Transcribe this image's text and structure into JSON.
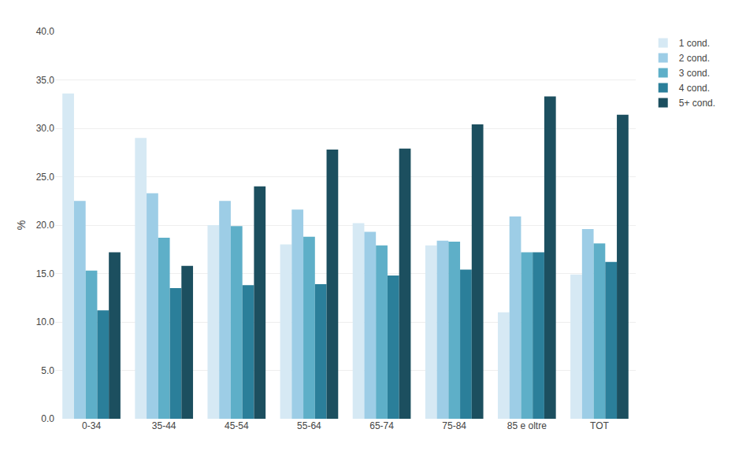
{
  "chart_data": {
    "type": "bar",
    "categories": [
      "0-34",
      "35-44",
      "45-54",
      "55-64",
      "65-74",
      "75-84",
      "85 e oltre",
      "TOT"
    ],
    "series": [
      {
        "name": "1 cond.",
        "color": "#d6e9f4",
        "values": [
          33.6,
          29.0,
          20.0,
          18.0,
          20.2,
          17.9,
          11.0,
          14.9
        ]
      },
      {
        "name": "2 cond.",
        "color": "#9dcde6",
        "values": [
          22.5,
          23.3,
          22.5,
          21.6,
          19.3,
          18.4,
          20.9,
          19.6
        ]
      },
      {
        "name": "3 cond.",
        "color": "#5eafc8",
        "values": [
          15.3,
          18.7,
          19.9,
          18.8,
          17.9,
          18.3,
          17.2,
          18.1
        ]
      },
      {
        "name": "4 cond.",
        "color": "#2b7f9a",
        "values": [
          11.2,
          13.5,
          13.8,
          13.9,
          14.8,
          15.4,
          17.2,
          16.2
        ]
      },
      {
        "name": "5+ cond.",
        "color": "#1c4f5f",
        "values": [
          17.2,
          15.8,
          24.0,
          27.8,
          27.9,
          30.4,
          33.3,
          31.4
        ]
      }
    ],
    "ylabel": "%",
    "ylim": [
      0,
      40
    ],
    "yticks": [
      {
        "value": 0,
        "label": "0.0"
      },
      {
        "value": 5,
        "label": "5.0"
      },
      {
        "value": 10,
        "label": "10.0"
      },
      {
        "value": 15,
        "label": "15.0"
      },
      {
        "value": 20,
        "label": "20.0"
      },
      {
        "value": 25,
        "label": "25.0"
      },
      {
        "value": 30,
        "label": "30.0"
      },
      {
        "value": 35,
        "label": "35.0"
      },
      {
        "value": 40,
        "label": "40.0"
      }
    ],
    "grid": true,
    "legend": "upper right"
  }
}
